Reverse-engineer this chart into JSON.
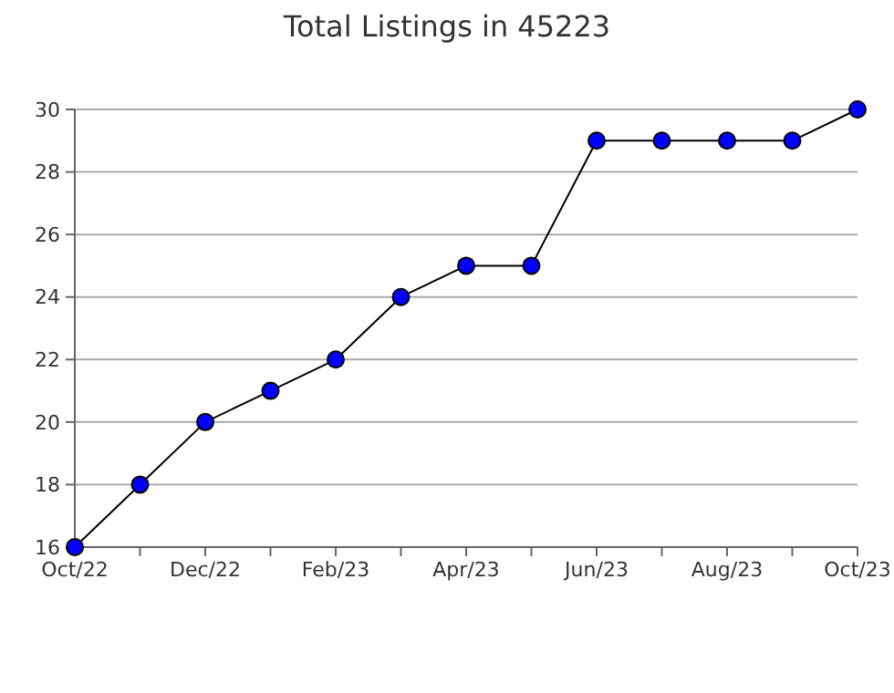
{
  "chart_data": {
    "type": "line",
    "title": "Total Listings in 45223",
    "categories": [
      "Oct/22",
      null,
      "Dec/22",
      null,
      "Feb/23",
      null,
      "Apr/23",
      null,
      "Jun/23",
      null,
      "Aug/23",
      null,
      "Oct/23"
    ],
    "series": [
      {
        "color": "#0000ff",
        "values": [
          16,
          18,
          20,
          21,
          22,
          24,
          25,
          25,
          29,
          29,
          29,
          29,
          30
        ]
      }
    ],
    "ylim": [
      16,
      30
    ],
    "yticks": [
      16,
      18,
      20,
      22,
      24,
      26,
      28,
      30
    ],
    "grid": "y",
    "marker": "circle",
    "line_style": "solid"
  }
}
